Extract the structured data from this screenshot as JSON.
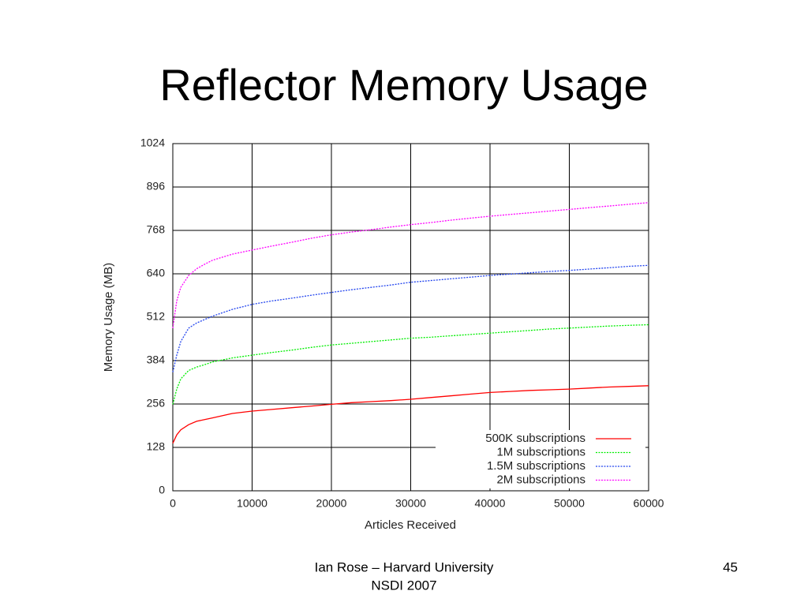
{
  "slide": {
    "title": "Reflector Memory Usage",
    "footer": [
      "Ian Rose – Harvard University",
      "NSDI 2007"
    ],
    "page_number": "45"
  },
  "chart_data": {
    "type": "line",
    "xlabel": "Articles Received",
    "ylabel": "Memory Usage (MB)",
    "x": [
      0,
      500,
      1000,
      2000,
      3000,
      4000,
      5000,
      7500,
      10000,
      12500,
      15000,
      17500,
      20000,
      22500,
      25000,
      27500,
      30000,
      32500,
      35000,
      37500,
      40000,
      42500,
      45000,
      47500,
      50000,
      52500,
      55000,
      57500,
      60000
    ],
    "series": [
      {
        "name": "500K subscriptions",
        "color": "#ff0000",
        "line_style": "solid",
        "values": [
          140,
          165,
          180,
          195,
          205,
          210,
          215,
          228,
          235,
          240,
          245,
          250,
          255,
          260,
          263,
          266,
          270,
          275,
          280,
          285,
          290,
          293,
          296,
          298,
          300,
          303,
          306,
          308,
          310
        ]
      },
      {
        "name": "1M subscriptions",
        "color": "#00ee00",
        "line_style": "dotted",
        "values": [
          255,
          300,
          330,
          355,
          365,
          372,
          380,
          392,
          400,
          408,
          415,
          423,
          430,
          435,
          440,
          445,
          450,
          453,
          457,
          461,
          465,
          469,
          473,
          477,
          480,
          483,
          486,
          488,
          490
        ]
      },
      {
        "name": "1.5M subscriptions",
        "color": "#2244ee",
        "line_style": "dotted",
        "values": [
          350,
          400,
          440,
          480,
          495,
          505,
          515,
          535,
          550,
          560,
          568,
          577,
          585,
          593,
          600,
          607,
          615,
          620,
          625,
          630,
          635,
          639,
          643,
          647,
          650,
          654,
          658,
          662,
          665
        ]
      },
      {
        "name": "2M subscriptions",
        "color": "#ff00ff",
        "line_style": "dotted",
        "values": [
          480,
          560,
          600,
          635,
          655,
          668,
          680,
          698,
          710,
          722,
          733,
          745,
          755,
          763,
          770,
          778,
          785,
          791,
          798,
          804,
          810,
          815,
          820,
          825,
          830,
          835,
          840,
          845,
          850
        ]
      }
    ],
    "xlim": [
      0,
      60000
    ],
    "xticks": [
      0,
      10000,
      20000,
      30000,
      40000,
      50000,
      60000
    ],
    "ylim": [
      0,
      1024
    ],
    "yticks": [
      0,
      128,
      256,
      384,
      512,
      640,
      768,
      896,
      1024
    ],
    "grid": true,
    "legend": "lower right"
  }
}
